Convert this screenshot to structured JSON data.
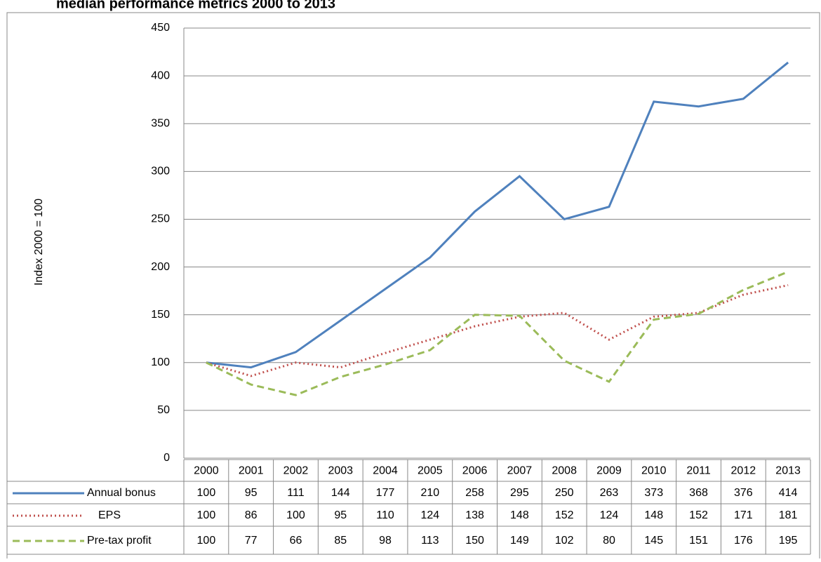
{
  "chart_data": {
    "type": "line",
    "title": "median performance metrics 2000 to 2013",
    "y_label": "Index 2000 = 100",
    "categories": [
      "2000",
      "2001",
      "2002",
      "2003",
      "2004",
      "2005",
      "2006",
      "2007",
      "2008",
      "2009",
      "2010",
      "2011",
      "2012",
      "2013"
    ],
    "series": [
      {
        "name": "Annual bonus",
        "color": "#4f81bd",
        "dash": "solid",
        "values": [
          100,
          95,
          111,
          144,
          177,
          210,
          258,
          295,
          250,
          263,
          373,
          368,
          376,
          414
        ]
      },
      {
        "name": "EPS",
        "color": "#c0504d",
        "dash": "dotted",
        "values": [
          100,
          86,
          100,
          95,
          110,
          124,
          138,
          148,
          152,
          124,
          148,
          152,
          171,
          181
        ]
      },
      {
        "name": "Pre-tax profit",
        "color": "#9bbb59",
        "dash": "dashed",
        "values": [
          100,
          77,
          66,
          85,
          98,
          113,
          150,
          149,
          102,
          80,
          145,
          151,
          176,
          195
        ]
      }
    ],
    "ylim": [
      0,
      450
    ],
    "yticks": [
      0,
      50,
      100,
      150,
      200,
      250,
      300,
      350,
      400,
      450
    ],
    "grid": true
  }
}
